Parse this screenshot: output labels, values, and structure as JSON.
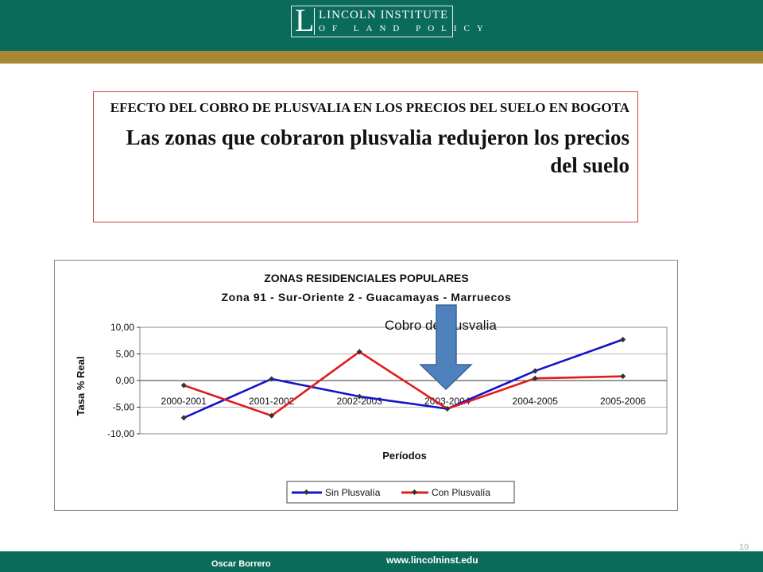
{
  "logo": {
    "letter": "L",
    "line1": "LINCOLN INSTITUTE",
    "line2": "OF LAND POLICY"
  },
  "headline": {
    "small": "EFECTO DEL COBRO DE PLUSVALIA EN LOS PRECIOS DEL SUELO EN BOGOTA",
    "big": "Las zonas que cobraron plusvalia redujeron los precios del suelo"
  },
  "annotation": {
    "text": "Cobro de plusvalia",
    "arrow_color": "#4f81bd"
  },
  "footer": {
    "name": "Oscar Borrero",
    "url": "www.lincolninst.edu",
    "page": "10"
  },
  "colors": {
    "band": "#0b6b5a",
    "gold": "#a88733",
    "sin": "#1414c8",
    "con": "#e01c1c"
  },
  "chart_data": {
    "type": "line",
    "title": "ZONAS RESIDENCIALES POPULARES",
    "subtitle": "Zona 91 - Sur-Oriente 2 - Guacamayas - Marruecos",
    "xlabel": "Períodos",
    "ylabel": "Tasa % Real",
    "categories": [
      "2000-2001",
      "2001-2002",
      "2002-2003",
      "2003-2004",
      "2004-2005",
      "2005-2006"
    ],
    "ylim": [
      -10,
      10
    ],
    "yticks": [
      "10,00",
      "5,00",
      "0,00",
      "-5,00",
      "-10,00"
    ],
    "ytick_values": [
      10,
      5,
      0,
      -5,
      -10
    ],
    "grid": true,
    "legend_position": "bottom-right",
    "series": [
      {
        "name": "Sin Plusvalía",
        "values": [
          -7.0,
          0.3,
          -3.0,
          -5.3,
          1.8,
          7.7
        ]
      },
      {
        "name": "Con Plusvalía",
        "values": [
          -0.9,
          -6.6,
          5.4,
          -5.3,
          0.4,
          0.8
        ]
      }
    ]
  }
}
